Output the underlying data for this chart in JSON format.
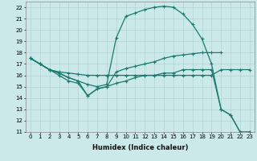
{
  "xlabel": "Humidex (Indice chaleur)",
  "xlim": [
    -0.5,
    23.5
  ],
  "ylim": [
    11,
    22.5
  ],
  "yticks": [
    11,
    12,
    13,
    14,
    15,
    16,
    17,
    18,
    19,
    20,
    21,
    22
  ],
  "xticks": [
    0,
    1,
    2,
    3,
    4,
    5,
    6,
    7,
    8,
    9,
    10,
    11,
    12,
    13,
    14,
    15,
    16,
    17,
    18,
    19,
    20,
    21,
    22,
    23
  ],
  "bg_color": "#cce9e9",
  "grid_color": "#aacccc",
  "line_color": "#1a7a6e",
  "line1_x": [
    0,
    1,
    2,
    3,
    4,
    5,
    6,
    7,
    8,
    9,
    10,
    11,
    12,
    13,
    14,
    15,
    16,
    17,
    18,
    19,
    20,
    21,
    22,
    23
  ],
  "line1_y": [
    17.5,
    17.0,
    16.5,
    16.3,
    16.2,
    16.1,
    16.0,
    16.0,
    16.0,
    16.0,
    16.0,
    16.0,
    16.0,
    16.0,
    16.0,
    16.0,
    16.0,
    16.0,
    16.0,
    16.0,
    16.5,
    16.5,
    16.5,
    16.5
  ],
  "line2_x": [
    0,
    1,
    2,
    3,
    4,
    5,
    6,
    7,
    8,
    9,
    10,
    11,
    12,
    13,
    14,
    15,
    16,
    17,
    18,
    19,
    20
  ],
  "line2_y": [
    17.5,
    17.0,
    16.5,
    16.0,
    15.5,
    15.3,
    14.2,
    14.8,
    15.0,
    16.3,
    16.6,
    16.8,
    17.0,
    17.2,
    17.5,
    17.7,
    17.8,
    17.9,
    18.0,
    18.0,
    18.0
  ],
  "line3_x": [
    0,
    1,
    2,
    3,
    4,
    5,
    6,
    7,
    8,
    9,
    10,
    11,
    12,
    13,
    14,
    15,
    16,
    17,
    18,
    19,
    20,
    21,
    22,
    23
  ],
  "line3_y": [
    17.5,
    17.0,
    16.5,
    16.2,
    15.8,
    15.5,
    15.2,
    15.0,
    15.2,
    19.3,
    21.2,
    21.5,
    21.8,
    22.0,
    22.1,
    22.0,
    21.4,
    20.5,
    19.2,
    17.0,
    13.0,
    12.5,
    11.0,
    11.0
  ],
  "line4_x": [
    0,
    1,
    2,
    3,
    4,
    5,
    6,
    7,
    8,
    9,
    10,
    11,
    12,
    13,
    14,
    15,
    16,
    17,
    18,
    19,
    20,
    21,
    22,
    23
  ],
  "line4_y": [
    17.5,
    17.0,
    16.5,
    16.2,
    15.8,
    15.5,
    14.2,
    14.8,
    15.0,
    15.3,
    15.5,
    15.8,
    16.0,
    16.0,
    16.2,
    16.2,
    16.5,
    16.5,
    16.5,
    16.5,
    13.0,
    12.5,
    11.0,
    11.0
  ]
}
